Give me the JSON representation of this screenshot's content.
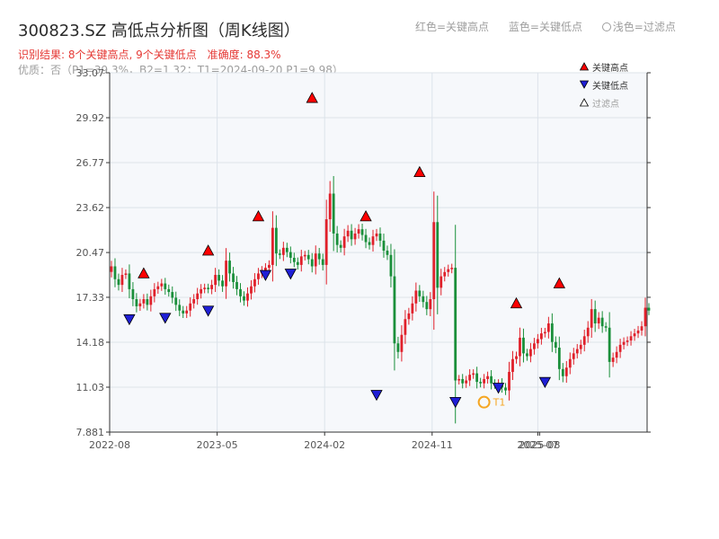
{
  "header": {
    "title": "300823.SZ 高低点分析图（周K线图）",
    "result_text": "识别结果: 8个关键高点, 9个关键低点",
    "accuracy_text": "准确度: 88.3%",
    "quality_text": "优质：否（P1=39.3%，B2=1.32；T1=2024-09-20 P1=9.98）"
  },
  "top_legend": {
    "red": "红色=关键高点",
    "blue": "蓝色=关键低点",
    "light": "浅色=过滤点"
  },
  "legend": {
    "high": "关键高点",
    "low": "关键低点",
    "filtered": "过滤点"
  },
  "colors": {
    "up": "#e0202a",
    "down": "#1a8f3a",
    "high_marker": "#ff0000",
    "low_marker": "#1f1fd6",
    "t1_marker": "#f5a623",
    "plot_bg": "#f6f8fb",
    "grid": "#dde3ea"
  },
  "chart_data": {
    "type": "candlestick",
    "title": "300823.SZ 高低点分析图（周K线图）",
    "y_ticks": [
      "7.881",
      "11.03",
      "14.18",
      "17.33",
      "20.47",
      "23.62",
      "26.77",
      "29.92",
      "33.07"
    ],
    "ylim": [
      7.881,
      33.07
    ],
    "x_ticks": [
      "2022-08",
      "2023-05",
      "2024-02",
      "2024-11",
      "2025-07",
      "2025-08"
    ],
    "xlim": [
      0,
      150
    ],
    "grid": true,
    "legend_position": "top-right",
    "prices": [
      19.5,
      18.6,
      18.2,
      18.9,
      19.0,
      17.9,
      17.2,
      16.7,
      16.9,
      17.2,
      16.8,
      17.4,
      17.9,
      18.1,
      18.3,
      17.9,
      17.7,
      17.3,
      16.8,
      16.4,
      16.2,
      16.4,
      16.9,
      17.2,
      17.6,
      17.9,
      18.0,
      17.9,
      18.2,
      18.9,
      18.5,
      18.1,
      19.9,
      19.0,
      18.4,
      17.9,
      17.4,
      17.1,
      17.6,
      18.1,
      18.6,
      19.0,
      19.2,
      19.4,
      19.6,
      22.2,
      20.4,
      20.3,
      20.8,
      20.5,
      20.1,
      19.8,
      19.6,
      20.2,
      20.3,
      20.0,
      19.5,
      20.4,
      20.0,
      19.6,
      22.8,
      24.6,
      21.8,
      21.0,
      20.8,
      21.6,
      22.0,
      21.4,
      21.8,
      22.1,
      21.7,
      21.2,
      21.0,
      21.6,
      21.8,
      21.3,
      20.6,
      20.3,
      18.8,
      14.1,
      13.5,
      14.7,
      15.8,
      16.2,
      16.9,
      17.8,
      17.4,
      17.0,
      16.5,
      17.2,
      22.6,
      18.0,
      18.8,
      19.1,
      19.3,
      19.4,
      11.5,
      11.6,
      11.3,
      11.5,
      11.9,
      12.0,
      11.4,
      11.3,
      11.6,
      11.8,
      11.3,
      11.2,
      11.3,
      11.0,
      10.8,
      12.1,
      13.0,
      13.2,
      14.5,
      13.4,
      13.2,
      13.7,
      14.1,
      14.4,
      14.8,
      14.9,
      15.5,
      14.2,
      13.8,
      12.3,
      11.8,
      12.4,
      13.0,
      13.4,
      13.7,
      14.0,
      14.6,
      15.2,
      16.5,
      15.5,
      15.9,
      15.3,
      15.2,
      12.8,
      13.1,
      13.5,
      14.0,
      14.2,
      14.3,
      14.6,
      14.8,
      15.0,
      15.3,
      16.6,
      16.4
    ],
    "key_highs": [
      {
        "i": 9,
        "price": 18.5
      },
      {
        "i": 27,
        "price": 20.1
      },
      {
        "i": 41,
        "price": 22.5
      },
      {
        "i": 56,
        "price": 30.8
      },
      {
        "i": 71,
        "price": 22.5
      },
      {
        "i": 86,
        "price": 25.6
      },
      {
        "i": 113,
        "price": 16.4
      },
      {
        "i": 125,
        "price": 17.8
      }
    ],
    "key_lows": [
      {
        "i": 5,
        "price": 16.3
      },
      {
        "i": 15,
        "price": 16.4
      },
      {
        "i": 27,
        "price": 16.9
      },
      {
        "i": 43,
        "price": 19.4
      },
      {
        "i": 50,
        "price": 19.5
      },
      {
        "i": 74,
        "price": 11.0
      },
      {
        "i": 96,
        "price": 10.5
      },
      {
        "i": 108,
        "price": 11.5
      },
      {
        "i": 121,
        "price": 11.9
      }
    ],
    "t1": {
      "i": 104,
      "price": 9.98,
      "label": "T1"
    }
  }
}
